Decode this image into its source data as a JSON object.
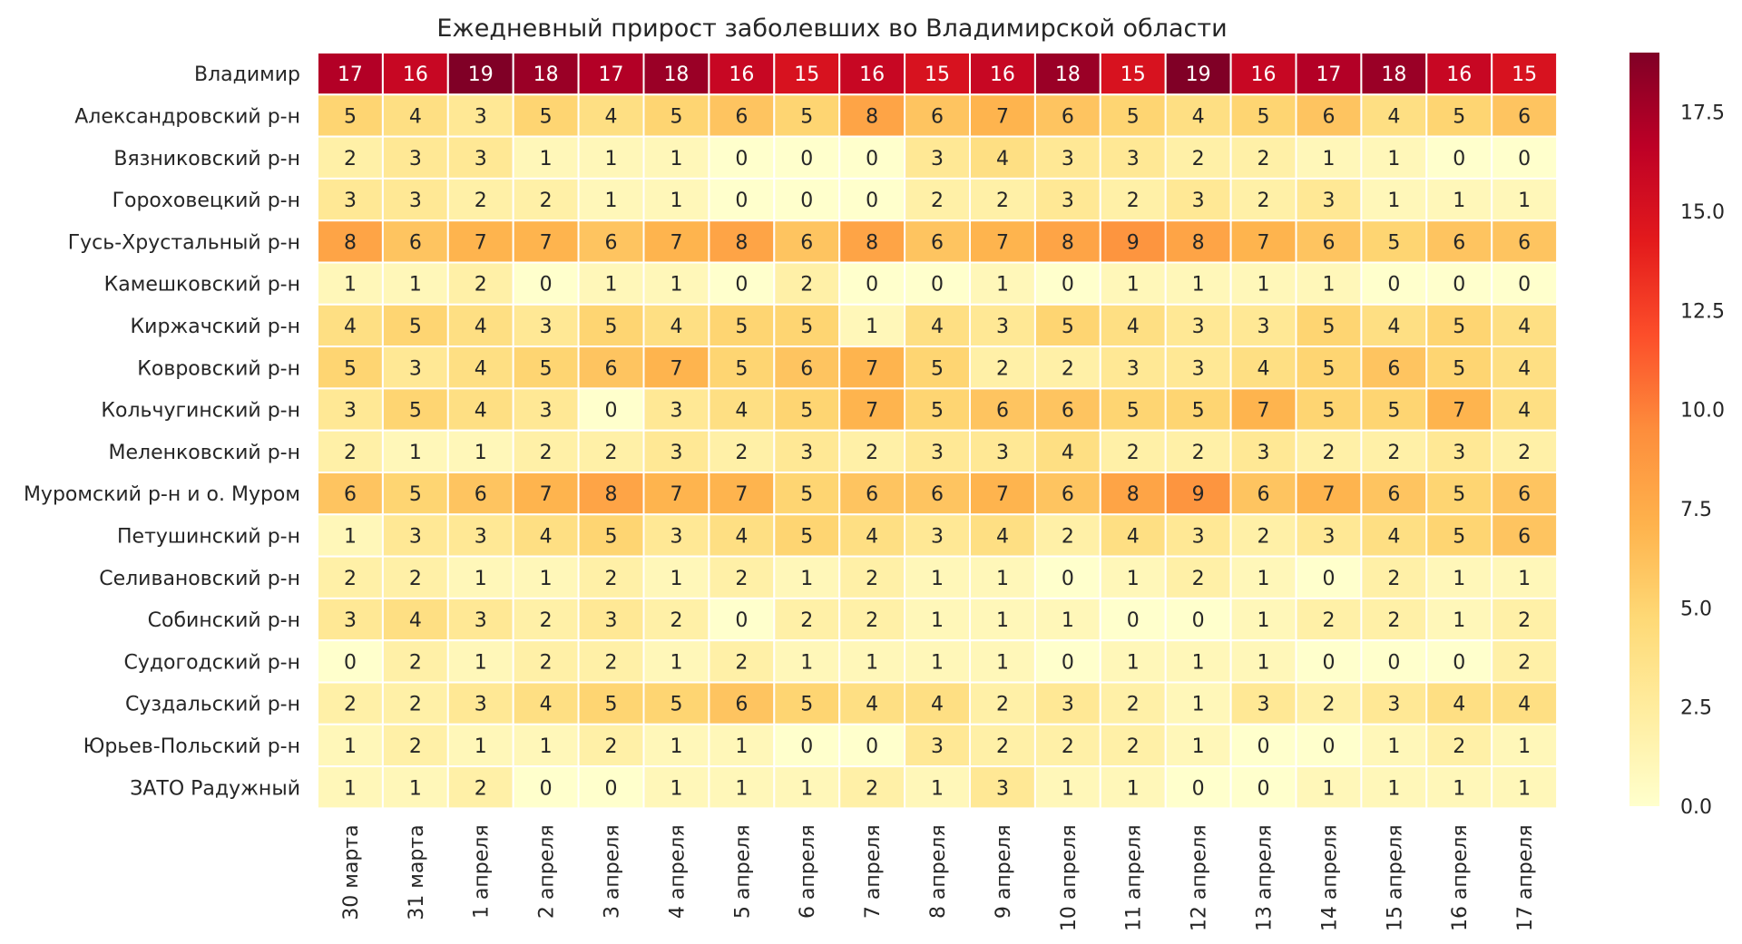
{
  "chart_data": {
    "type": "heatmap",
    "title": "Ежедневный прирост заболевших во Владимирской области",
    "rows": [
      "Владимир",
      "Александровский р-н",
      "Вязниковский р-н",
      "Гороховецкий р-н",
      "Гусь-Хрустальный р-н",
      "Камешковский р-н",
      "Киржачский р-н",
      "Ковровский р-н",
      "Кольчугинский р-н",
      "Меленковский р-н",
      "Муромский р-н и о. Муром",
      "Петушинский р-н",
      "Селивановский р-н",
      "Собинский р-н",
      "Судогодский р-н",
      "Суздальский р-н",
      "Юрьев-Польский р-н",
      "ЗАТО Радужный"
    ],
    "columns": [
      "30 марта",
      "31 марта",
      "1 апреля",
      "2 апреля",
      "3 апреля",
      "4 апреля",
      "5 апреля",
      "6 апреля",
      "7 апреля",
      "8 апреля",
      "9 апреля",
      "10 апреля",
      "11 апреля",
      "12 апреля",
      "13 апреля",
      "14 апреля",
      "15 апреля",
      "16 апреля",
      "17 апреля"
    ],
    "values": [
      [
        17,
        16,
        19,
        18,
        17,
        18,
        16,
        15,
        16,
        15,
        16,
        18,
        15,
        19,
        16,
        17,
        18,
        16,
        15
      ],
      [
        5,
        4,
        3,
        5,
        4,
        5,
        6,
        5,
        8,
        6,
        7,
        6,
        5,
        4,
        5,
        6,
        4,
        5,
        6
      ],
      [
        2,
        3,
        3,
        1,
        1,
        1,
        0,
        0,
        0,
        3,
        4,
        3,
        3,
        2,
        2,
        1,
        1,
        0,
        0
      ],
      [
        3,
        3,
        2,
        2,
        1,
        1,
        0,
        0,
        0,
        2,
        2,
        3,
        2,
        3,
        2,
        3,
        1,
        1,
        1
      ],
      [
        8,
        6,
        7,
        7,
        6,
        7,
        8,
        6,
        8,
        6,
        7,
        8,
        9,
        8,
        7,
        6,
        5,
        6,
        6
      ],
      [
        1,
        1,
        2,
        0,
        1,
        1,
        0,
        2,
        0,
        0,
        1,
        0,
        1,
        1,
        1,
        1,
        0,
        0,
        0
      ],
      [
        4,
        5,
        4,
        3,
        5,
        4,
        5,
        5,
        1,
        4,
        3,
        5,
        4,
        3,
        3,
        5,
        4,
        5,
        4
      ],
      [
        5,
        3,
        4,
        5,
        6,
        7,
        5,
        6,
        7,
        5,
        2,
        2,
        3,
        3,
        4,
        5,
        6,
        5,
        4
      ],
      [
        3,
        5,
        4,
        3,
        0,
        3,
        4,
        5,
        7,
        5,
        6,
        6,
        5,
        5,
        7,
        5,
        5,
        7,
        4
      ],
      [
        2,
        1,
        1,
        2,
        2,
        3,
        2,
        3,
        2,
        3,
        3,
        4,
        2,
        2,
        3,
        2,
        2,
        3,
        2
      ],
      [
        6,
        5,
        6,
        7,
        8,
        7,
        7,
        5,
        6,
        6,
        7,
        6,
        8,
        9,
        6,
        7,
        6,
        5,
        6
      ],
      [
        1,
        3,
        3,
        4,
        5,
        3,
        4,
        5,
        4,
        3,
        4,
        2,
        4,
        3,
        2,
        3,
        4,
        5,
        6
      ],
      [
        2,
        2,
        1,
        1,
        2,
        1,
        2,
        1,
        2,
        1,
        1,
        0,
        1,
        2,
        1,
        0,
        2,
        1,
        1
      ],
      [
        3,
        4,
        3,
        2,
        3,
        2,
        0,
        2,
        2,
        1,
        1,
        1,
        0,
        0,
        1,
        2,
        2,
        1,
        2
      ],
      [
        0,
        2,
        1,
        2,
        2,
        1,
        2,
        1,
        1,
        1,
        1,
        0,
        1,
        1,
        1,
        0,
        0,
        0,
        2
      ],
      [
        2,
        2,
        3,
        4,
        5,
        5,
        6,
        5,
        4,
        4,
        2,
        3,
        2,
        1,
        3,
        2,
        3,
        4,
        4
      ],
      [
        1,
        2,
        1,
        1,
        2,
        1,
        1,
        0,
        0,
        3,
        2,
        2,
        2,
        1,
        0,
        0,
        1,
        2,
        1
      ],
      [
        1,
        1,
        2,
        0,
        0,
        1,
        1,
        1,
        2,
        1,
        3,
        1,
        1,
        0,
        0,
        1,
        1,
        1,
        1
      ]
    ],
    "vmin": 0,
    "vmax": 19,
    "colormap": "YlOrRd",
    "colorbar_ticks": [
      "0.0",
      "2.5",
      "5.0",
      "7.5",
      "10.0",
      "12.5",
      "15.0",
      "17.5"
    ],
    "colorbar_tick_values": [
      0,
      2.5,
      5,
      7.5,
      10,
      12.5,
      15,
      17.5
    ],
    "cell_border_color": "#ffffff",
    "legend": "colorbar-right"
  }
}
